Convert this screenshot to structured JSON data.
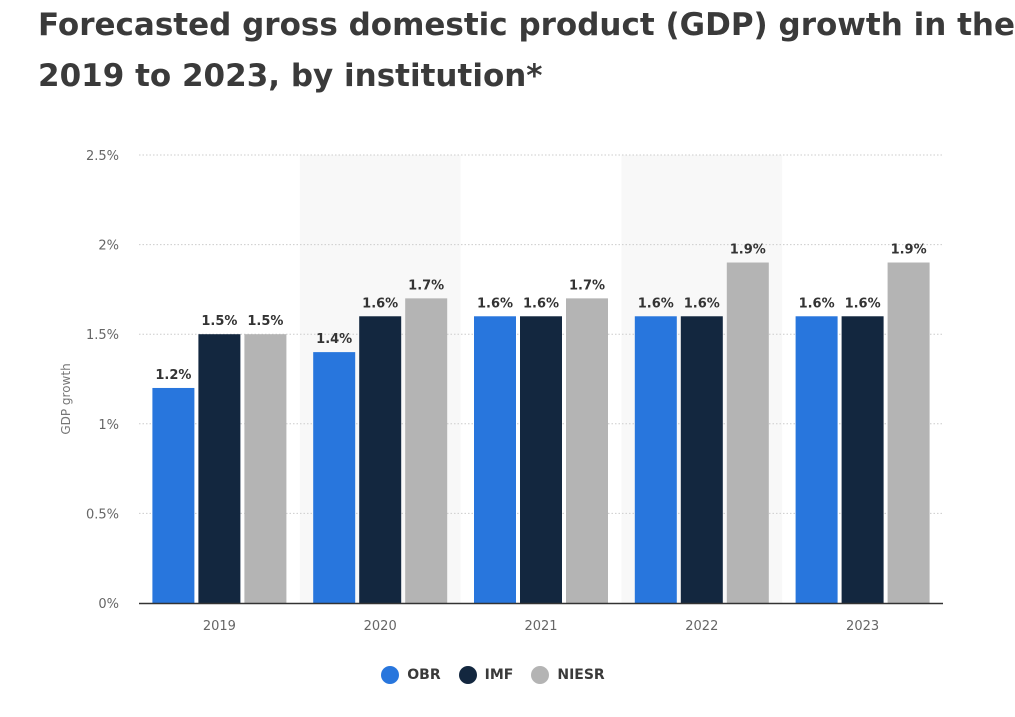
{
  "title_lines": [
    "Forecasted gross domestic product (GDP) growth in the",
    "2019 to 2023, by institution*"
  ],
  "chart_data": {
    "type": "bar",
    "title": "Forecasted gross domestic product (GDP) growth in the 2019 to 2023, by institution*",
    "categories": [
      "2019",
      "2020",
      "2021",
      "2022",
      "2023"
    ],
    "series": [
      {
        "name": "OBR",
        "color": "#2876dd",
        "values": [
          1.2,
          1.4,
          1.6,
          1.6,
          1.6
        ],
        "labels": [
          "1.2%",
          "1.4%",
          "1.6%",
          "1.6%",
          "1.6%"
        ]
      },
      {
        "name": "IMF",
        "color": "#13273f",
        "values": [
          1.5,
          1.6,
          1.6,
          1.6,
          1.6
        ],
        "labels": [
          "1.5%",
          "1.6%",
          "1.6%",
          "1.6%",
          "1.6%"
        ]
      },
      {
        "name": "NIESR",
        "color": "#b4b4b4",
        "values": [
          1.5,
          1.7,
          1.7,
          1.9,
          1.9
        ],
        "labels": [
          "1.5%",
          "1.7%",
          "1.7%",
          "1.9%",
          "1.9%"
        ]
      }
    ],
    "ylabel": "GDP growth",
    "xlabel": "",
    "ylim": [
      0,
      2.5
    ],
    "yticks": [
      0,
      0.5,
      1,
      1.5,
      2,
      2.5
    ],
    "ytick_labels": [
      "0%",
      "0.5%",
      "1%",
      "1.5%",
      "2%",
      "2.5%"
    ],
    "grid": true,
    "legend_position": "bottom-center",
    "alternating_band_color": "#f8f8f8",
    "grid_color": "#cccccc",
    "axis_color": "#333333"
  }
}
